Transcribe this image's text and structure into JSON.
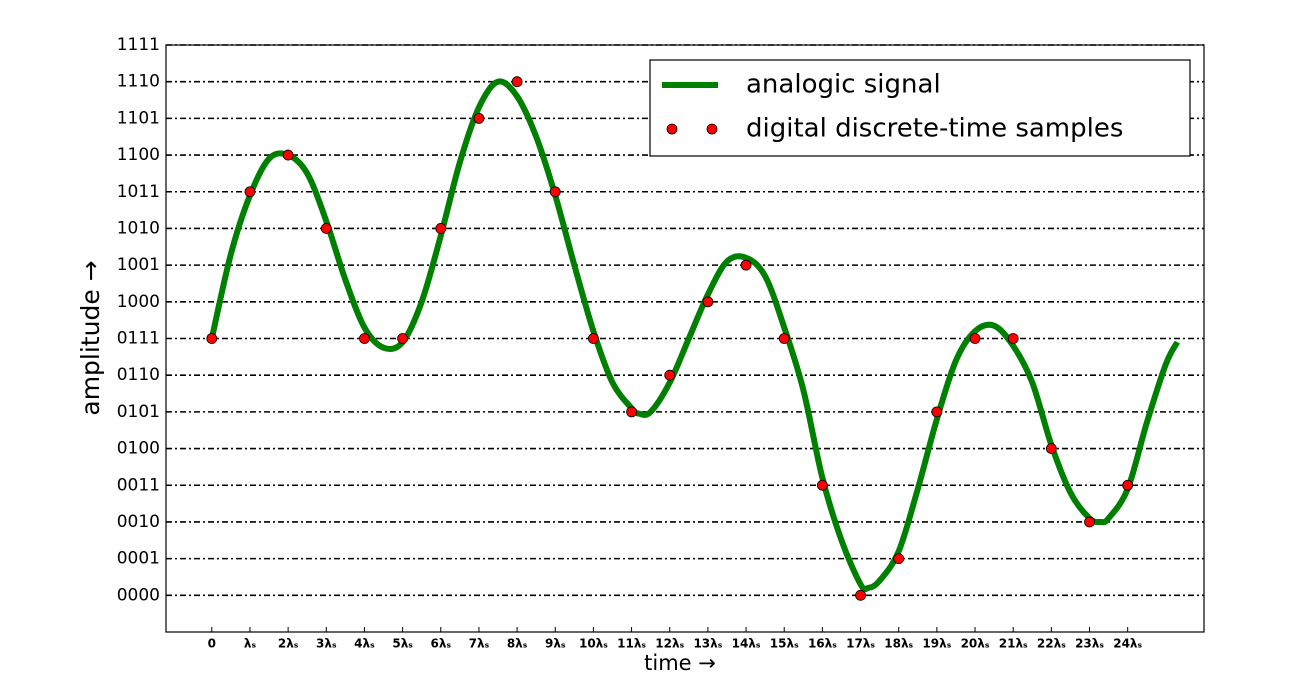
{
  "chart_data": {
    "type": "line",
    "xlabel": "time →",
    "ylabel": "amplitude →",
    "xlim": [
      -1.2,
      26
    ],
    "ylim": [
      -1,
      15
    ],
    "xticks": [
      0,
      {
        "value": 1,
        "label": "λₛ"
      },
      {
        "value": 2,
        "label": "2λₛ"
      },
      {
        "value": 3,
        "label": "3λₛ"
      },
      {
        "value": 4,
        "label": "4λₛ"
      },
      {
        "value": 5,
        "label": "5λₛ"
      },
      {
        "value": 6,
        "label": "6λₛ"
      },
      {
        "value": 7,
        "label": "7λₛ"
      },
      {
        "value": 8,
        "label": "8λₛ"
      },
      {
        "value": 9,
        "label": "9λₛ"
      },
      {
        "value": 10,
        "label": "10λₛ"
      },
      {
        "value": 11,
        "label": "11λₛ"
      },
      {
        "value": 12,
        "label": "12λₛ"
      },
      {
        "value": 13,
        "label": "13λₛ"
      },
      {
        "value": 14,
        "label": "14λₛ"
      },
      {
        "value": 15,
        "label": "15λₛ"
      },
      {
        "value": 16,
        "label": "16λₛ"
      },
      {
        "value": 17,
        "label": "17λₛ"
      },
      {
        "value": 18,
        "label": "18λₛ"
      },
      {
        "value": 19,
        "label": "19λₛ"
      },
      {
        "value": 20,
        "label": "20λₛ"
      },
      {
        "value": 21,
        "label": "21λₛ"
      },
      {
        "value": 22,
        "label": "22λₛ"
      },
      {
        "value": 23,
        "label": "23λₛ"
      },
      {
        "value": 24,
        "label": "24λₛ"
      }
    ],
    "yticks": [
      {
        "value": 0,
        "label": "0000"
      },
      {
        "value": 1,
        "label": "0001"
      },
      {
        "value": 2,
        "label": "0010"
      },
      {
        "value": 3,
        "label": "0011"
      },
      {
        "value": 4,
        "label": "0100"
      },
      {
        "value": 5,
        "label": "0101"
      },
      {
        "value": 6,
        "label": "0110"
      },
      {
        "value": 7,
        "label": "0111"
      },
      {
        "value": 8,
        "label": "1000"
      },
      {
        "value": 9,
        "label": "1001"
      },
      {
        "value": 10,
        "label": "1010"
      },
      {
        "value": 11,
        "label": "1011"
      },
      {
        "value": 12,
        "label": "1100"
      },
      {
        "value": 13,
        "label": "1101"
      },
      {
        "value": 14,
        "label": "1110"
      },
      {
        "value": 15,
        "label": "1111"
      }
    ],
    "grid": true,
    "legend": "upper right",
    "series": [
      {
        "name": "analogic signal",
        "type": "line",
        "color": "#008000",
        "x": [
          0,
          0.5,
          1,
          1.5,
          2,
          2.5,
          3,
          3.5,
          4,
          4.5,
          5,
          5.5,
          6,
          6.5,
          7,
          7.5,
          8,
          8.5,
          9,
          9.5,
          10,
          10.5,
          11,
          11.2,
          11.5,
          12,
          12.5,
          13,
          13.5,
          14,
          14.5,
          15,
          15.5,
          16,
          16.5,
          17,
          17.2,
          17.5,
          18,
          18.5,
          19,
          19.5,
          20,
          20.5,
          21,
          21.5,
          22,
          22.5,
          23,
          23.3,
          23.5,
          24,
          24.5,
          25,
          25.3
        ],
        "values": [
          7.0,
          9.3,
          10.9,
          11.9,
          12.0,
          11.5,
          10.2,
          8.6,
          7.3,
          6.75,
          6.9,
          8.0,
          9.8,
          11.8,
          13.3,
          14.0,
          13.6,
          12.5,
          10.9,
          9.0,
          7.2,
          5.8,
          5.1,
          4.95,
          5.0,
          5.8,
          7.0,
          8.2,
          9.1,
          9.2,
          8.7,
          7.3,
          5.6,
          3.2,
          1.5,
          0.3,
          0.2,
          0.4,
          1.2,
          2.9,
          4.8,
          6.4,
          7.2,
          7.35,
          6.8,
          5.8,
          4.1,
          2.8,
          2.1,
          2.0,
          2.1,
          2.9,
          4.7,
          6.3,
          6.9
        ]
      },
      {
        "name": "digital discrete-time samples",
        "type": "scatter",
        "color": "#ff0000",
        "x": [
          0,
          1,
          2,
          3,
          4,
          5,
          6,
          7,
          8,
          9,
          10,
          11,
          12,
          13,
          14,
          15,
          16,
          17,
          18,
          19,
          20,
          21,
          22,
          23,
          24
        ],
        "values": [
          7,
          11,
          12,
          10,
          7,
          7,
          10,
          13,
          14,
          11,
          7,
          5,
          6,
          8,
          9,
          7,
          3,
          0,
          1,
          5,
          7,
          7,
          4,
          2,
          3
        ]
      }
    ]
  }
}
